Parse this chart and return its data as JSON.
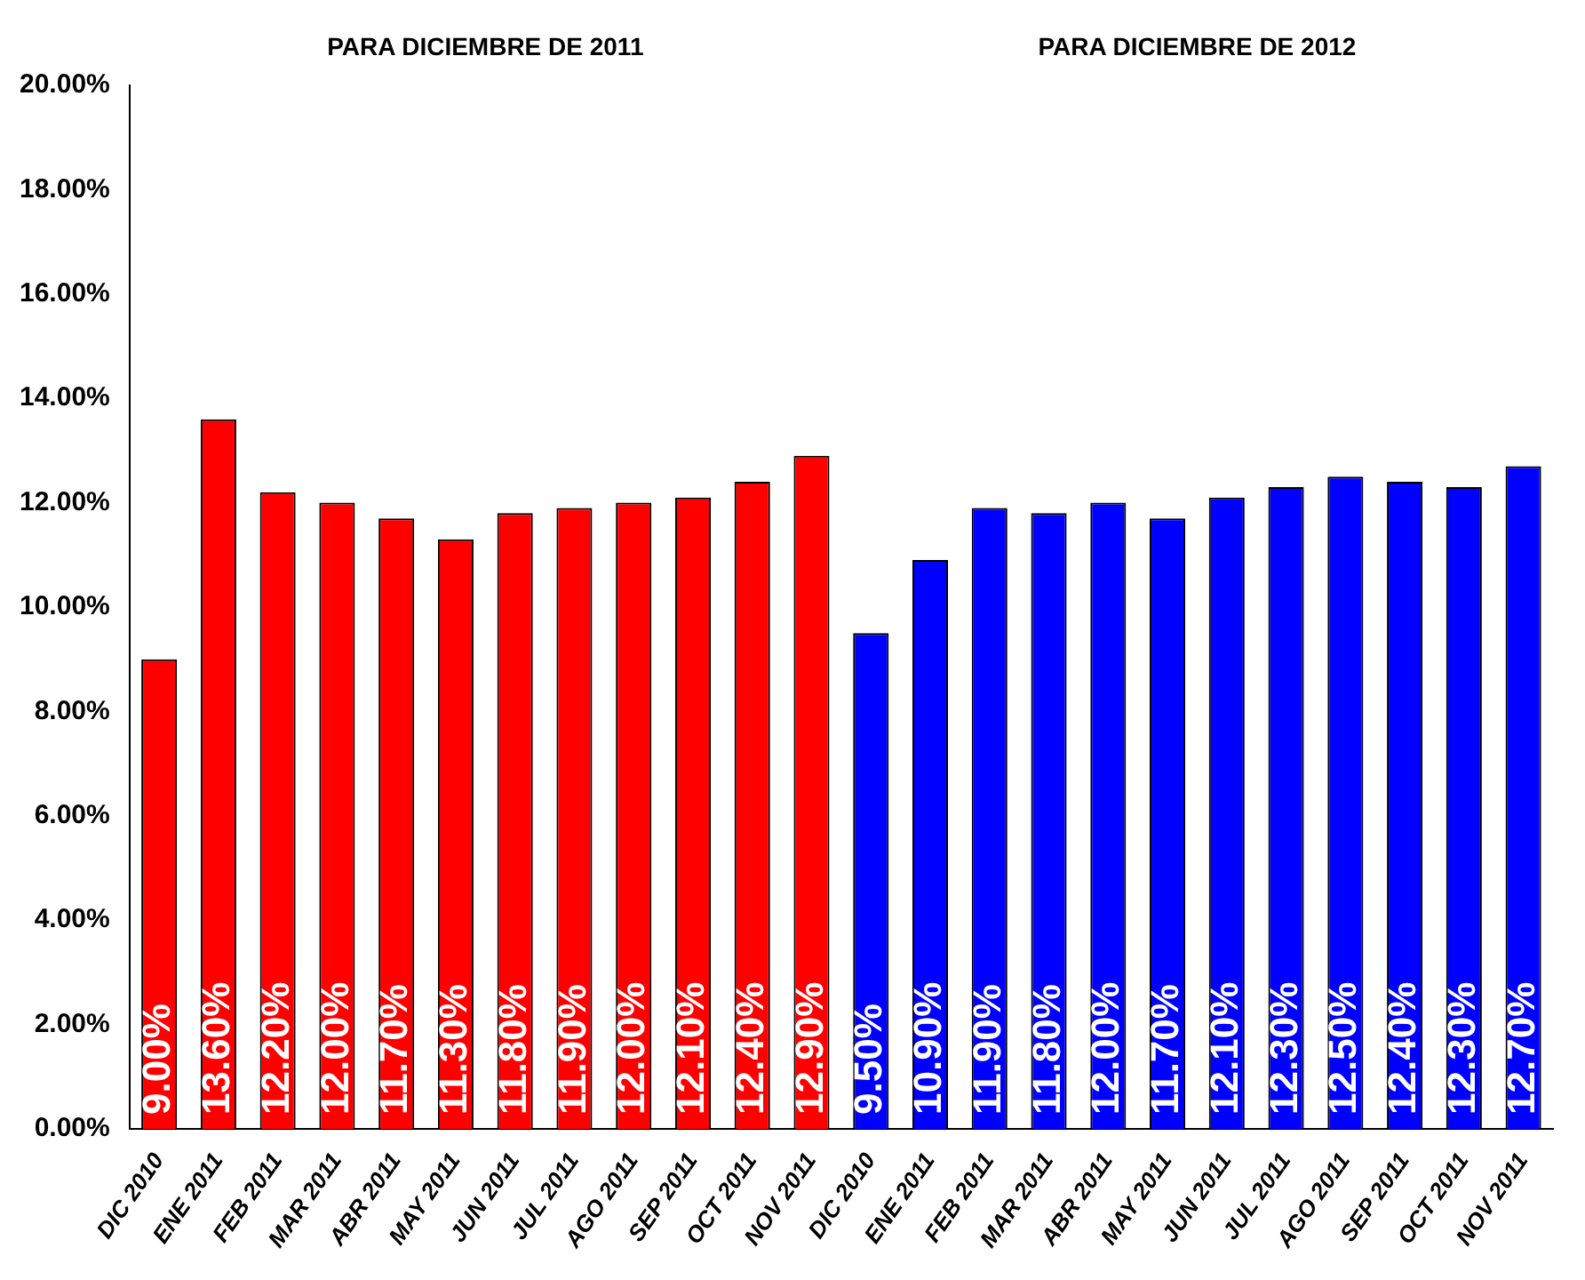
{
  "chart_data": {
    "type": "bar",
    "annotations": [
      "PARA DICIEMBRE DE 2011",
      "PARA DICIEMBRE DE 2012"
    ],
    "categories": [
      "DIC 2010",
      "ENE 2011",
      "FEB 2011",
      "MAR 2011",
      "ABR 2011",
      "MAY 2011",
      "JUN 2011",
      "JUL 2011",
      "AGO 2011",
      "SEP 2011",
      "OCT 2011",
      "NOV 2011",
      "DIC 2010",
      "ENE 2011",
      "FEB 2011",
      "MAR 2011",
      "ABR 2011",
      "MAY 2011",
      "JUN 2011",
      "JUL 2011",
      "AGO 2011",
      "SEP 2011",
      "OCT 2011",
      "NOV 2011"
    ],
    "series": [
      {
        "color": "#ff0000",
        "values": [
          9.0,
          13.6,
          12.2,
          12.0,
          11.7,
          11.3,
          11.8,
          11.9,
          12.0,
          12.1,
          12.4,
          12.9,
          null,
          null,
          null,
          null,
          null,
          null,
          null,
          null,
          null,
          null,
          null,
          null
        ],
        "value_labels": [
          "9.00%",
          "13.60%",
          "12.20%",
          "12.00%",
          "11.70%",
          "11.30%",
          "11.80%",
          "11.90%",
          "12.00%",
          "12.10%",
          "12.40%",
          "12.90%",
          null,
          null,
          null,
          null,
          null,
          null,
          null,
          null,
          null,
          null,
          null,
          null
        ]
      },
      {
        "color": "#0000ff",
        "values": [
          null,
          null,
          null,
          null,
          null,
          null,
          null,
          null,
          null,
          null,
          null,
          null,
          9.5,
          10.9,
          11.9,
          11.8,
          12.0,
          11.7,
          12.1,
          12.3,
          12.5,
          12.4,
          12.3,
          12.7
        ],
        "value_labels": [
          null,
          null,
          null,
          null,
          null,
          null,
          null,
          null,
          null,
          null,
          null,
          null,
          "9.50%",
          "10.90%",
          "11.90%",
          "11.80%",
          "12.00%",
          "11.70%",
          "12.10%",
          "12.30%",
          "12.50%",
          "12.40%",
          "12.30%",
          "12.70%"
        ]
      }
    ],
    "ylim": [
      0,
      20
    ],
    "yticks": [
      {
        "value": 0,
        "label": "0.00%"
      },
      {
        "value": 2,
        "label": "2.00%"
      },
      {
        "value": 4,
        "label": "4.00%"
      },
      {
        "value": 6,
        "label": "6.00%"
      },
      {
        "value": 8,
        "label": "8.00%"
      },
      {
        "value": 10,
        "label": "10.00%"
      },
      {
        "value": 12,
        "label": "12.00%"
      },
      {
        "value": 14,
        "label": "14.00%"
      },
      {
        "value": 16,
        "label": "16.00%"
      },
      {
        "value": 18,
        "label": "18.00%"
      },
      {
        "value": 20,
        "label": "20.00%"
      }
    ],
    "grid": false,
    "legend": false
  }
}
